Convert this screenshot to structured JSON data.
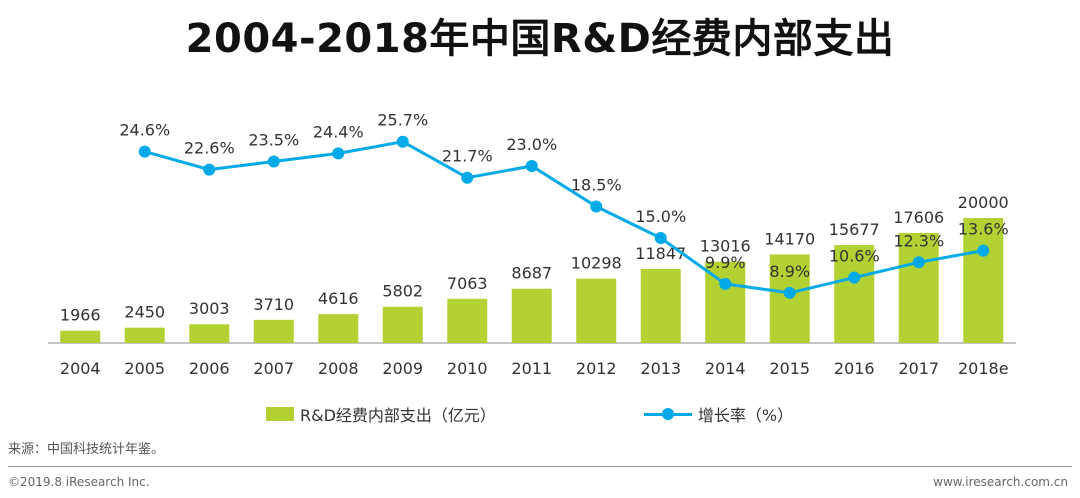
{
  "title": "2004-2018年中国R&D经费内部支出",
  "chart_data": {
    "type": "bar",
    "categories": [
      "2004",
      "2005",
      "2006",
      "2007",
      "2008",
      "2009",
      "2010",
      "2011",
      "2012",
      "2013",
      "2014",
      "2015",
      "2016",
      "2017",
      "2018e"
    ],
    "series": [
      {
        "name": "R&D经费内部支出（亿元）",
        "type": "bar",
        "values": [
          1966,
          2450,
          3003,
          3710,
          4616,
          5802,
          7063,
          8687,
          10298,
          11847,
          13016,
          14170,
          15677,
          17606,
          20000
        ],
        "labels": [
          "1966",
          "2450",
          "3003",
          "3710",
          "4616",
          "5802",
          "7063",
          "8687",
          "10298",
          "11847",
          "13016",
          "14170",
          "15677",
          "17606",
          "20000"
        ],
        "color": "#b2d234"
      },
      {
        "name": "增长率（%）",
        "type": "line",
        "values": [
          null,
          24.6,
          22.6,
          23.5,
          24.4,
          25.7,
          21.7,
          23.0,
          18.5,
          15.0,
          9.9,
          8.9,
          10.6,
          12.3,
          13.6
        ],
        "labels": [
          "",
          "24.6%",
          "22.6%",
          "23.5%",
          "24.4%",
          "25.7%",
          "21.7%",
          "23.0%",
          "18.5%",
          "15.0%",
          "9.9%",
          "8.9%",
          "10.6%",
          "12.3%",
          "13.6%"
        ],
        "color": "#00a9e8"
      }
    ],
    "bar_ylim": [
      0,
      22000
    ],
    "line_ylim": [
      0,
      30
    ],
    "legend": [
      "R&D经费内部支出（亿元）",
      "增长率（%）"
    ],
    "legend_position": "bottom"
  },
  "legend": {
    "bar_label": "R&D经费内部支出（亿元）",
    "line_label": "增长率（%）"
  },
  "source": "来源：中国科技统计年鉴。",
  "footer": {
    "copyright": "©2019.8 iResearch Inc.",
    "website": "www.iresearch.com.cn"
  }
}
